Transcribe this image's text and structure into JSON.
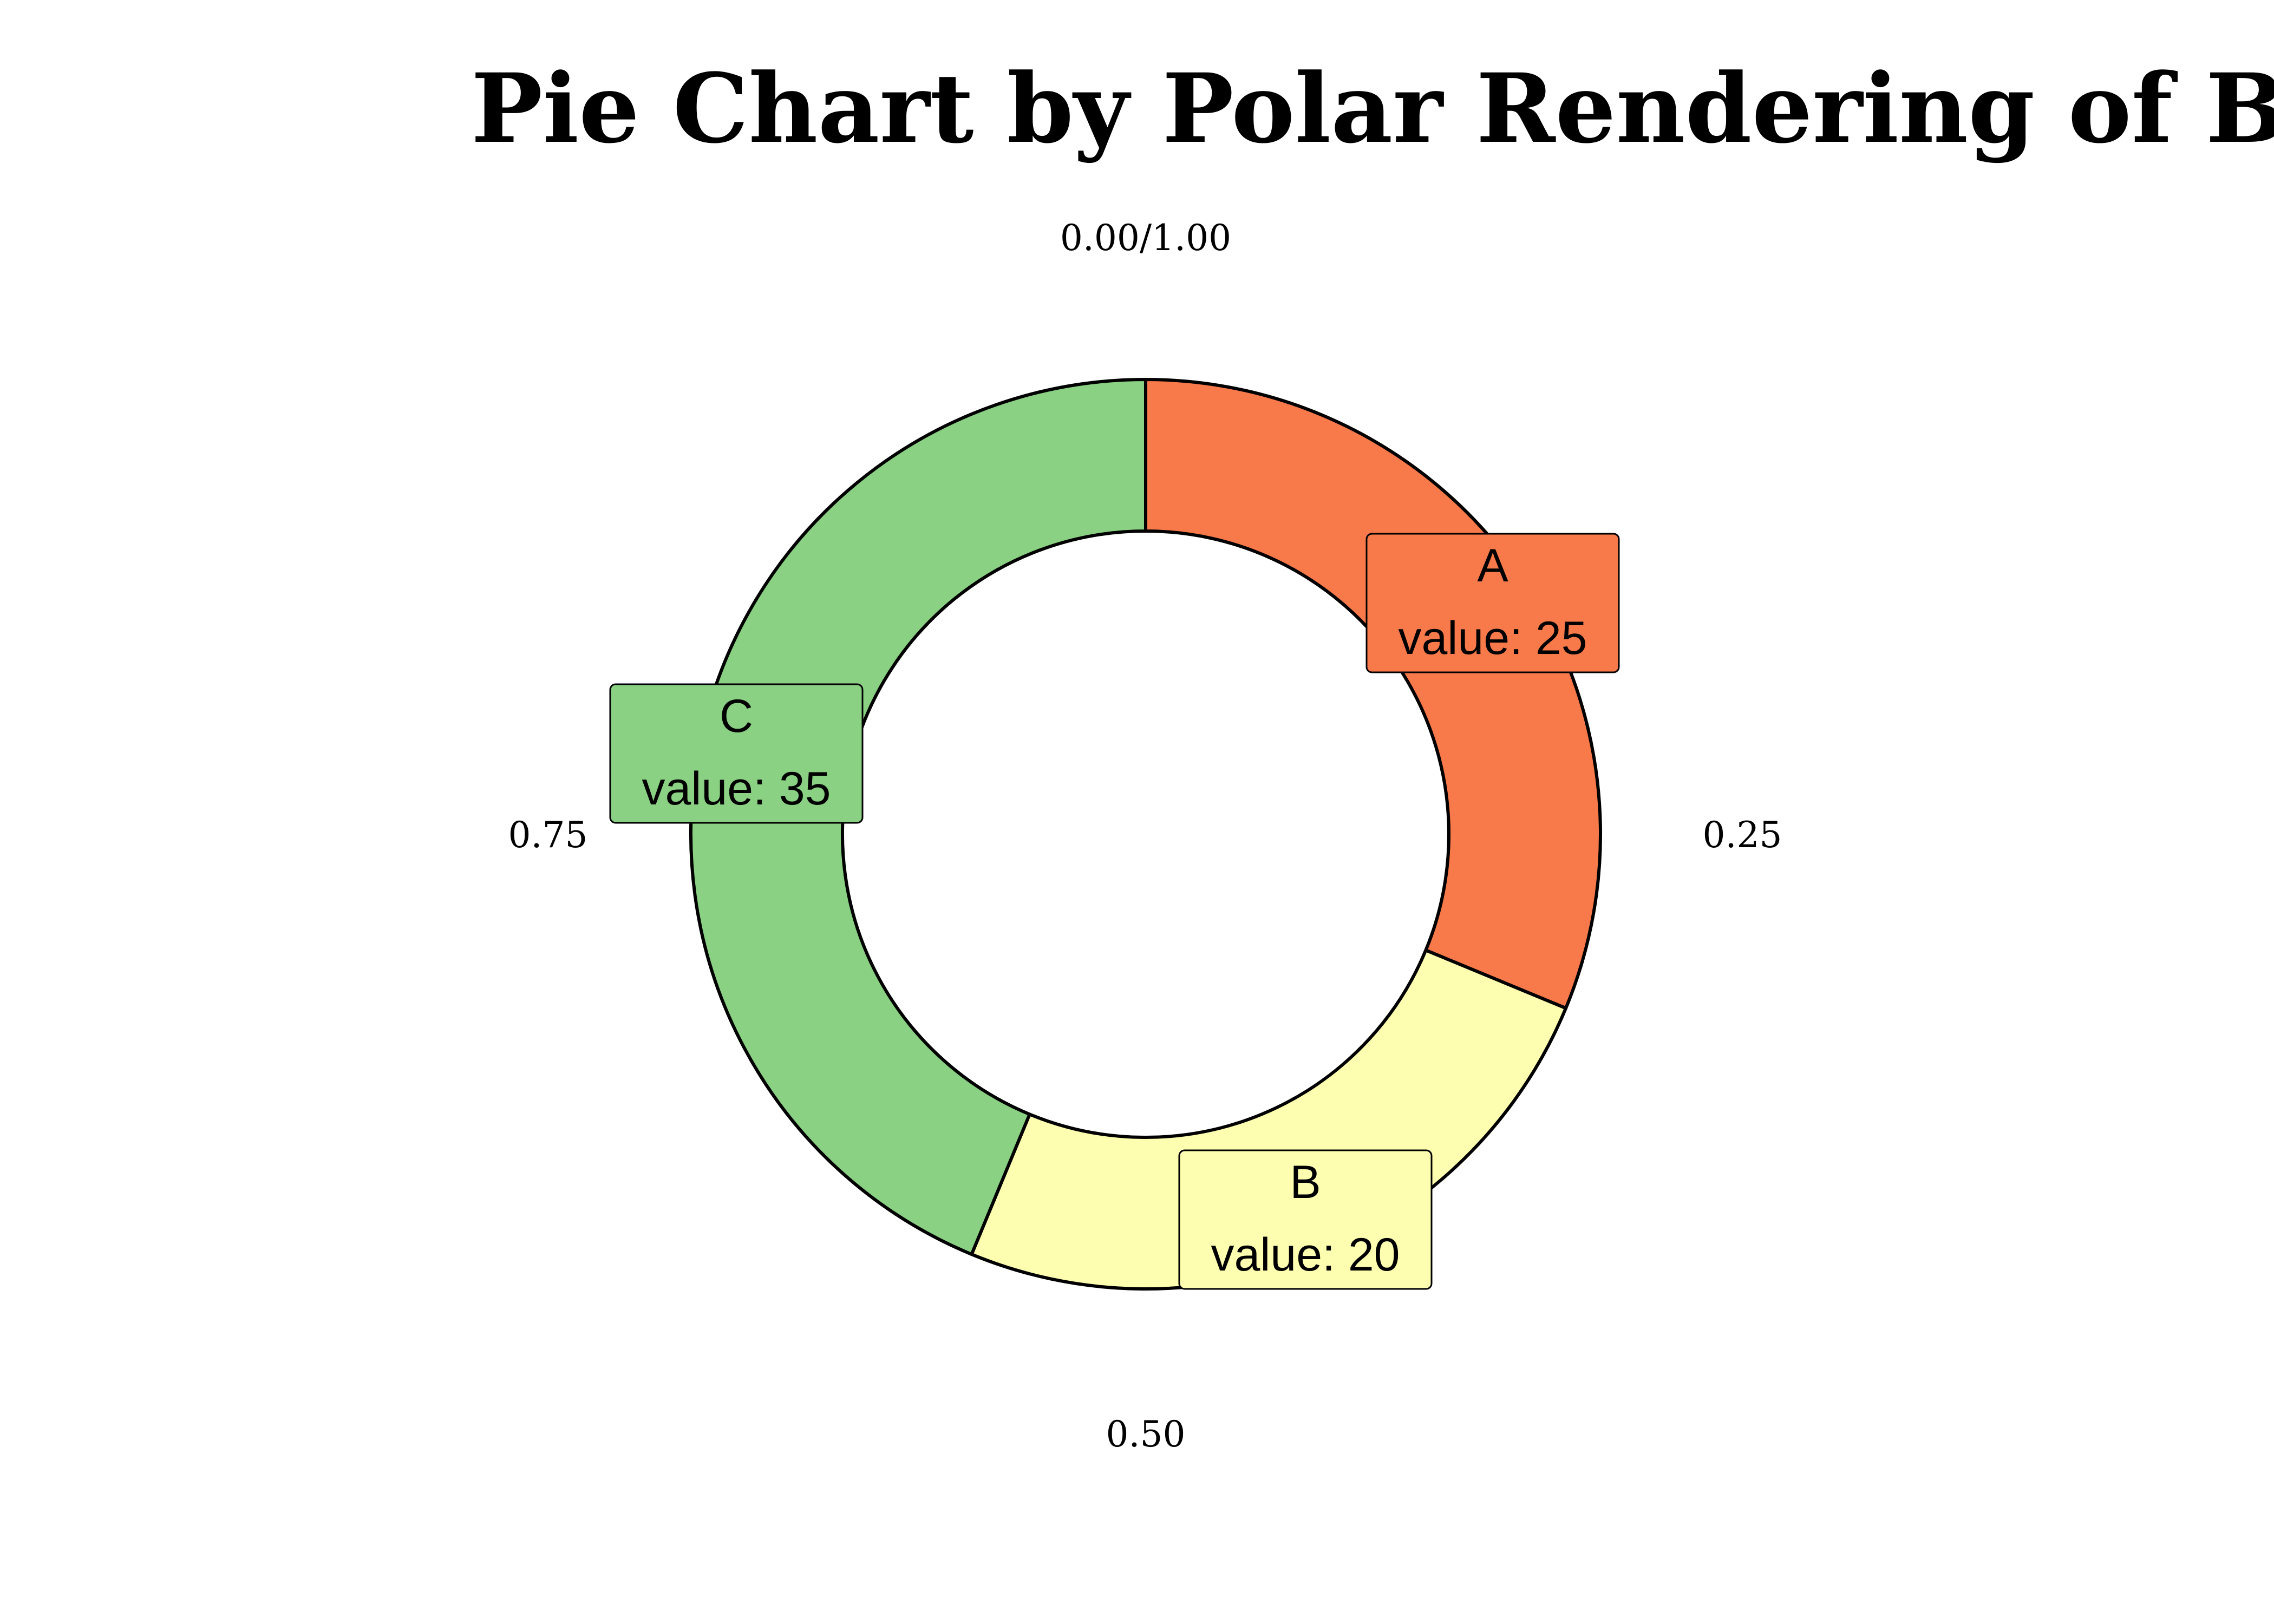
{
  "chart_data": {
    "type": "pie",
    "style": "donut",
    "title": "Pie Chart by Polar Rendering of Bar Char",
    "categories": [
      "A",
      "B",
      "C"
    ],
    "values": [
      25,
      20,
      35
    ],
    "value_label_prefix": "value: ",
    "colors": [
      "#F87A4A",
      "#FEFEB0",
      "#8AD183"
    ],
    "tick_labels": [
      "0.00/1.00",
      "0.25",
      "0.50",
      "0.75"
    ],
    "outline_color": "#000000",
    "legend": "none",
    "grid": false
  }
}
